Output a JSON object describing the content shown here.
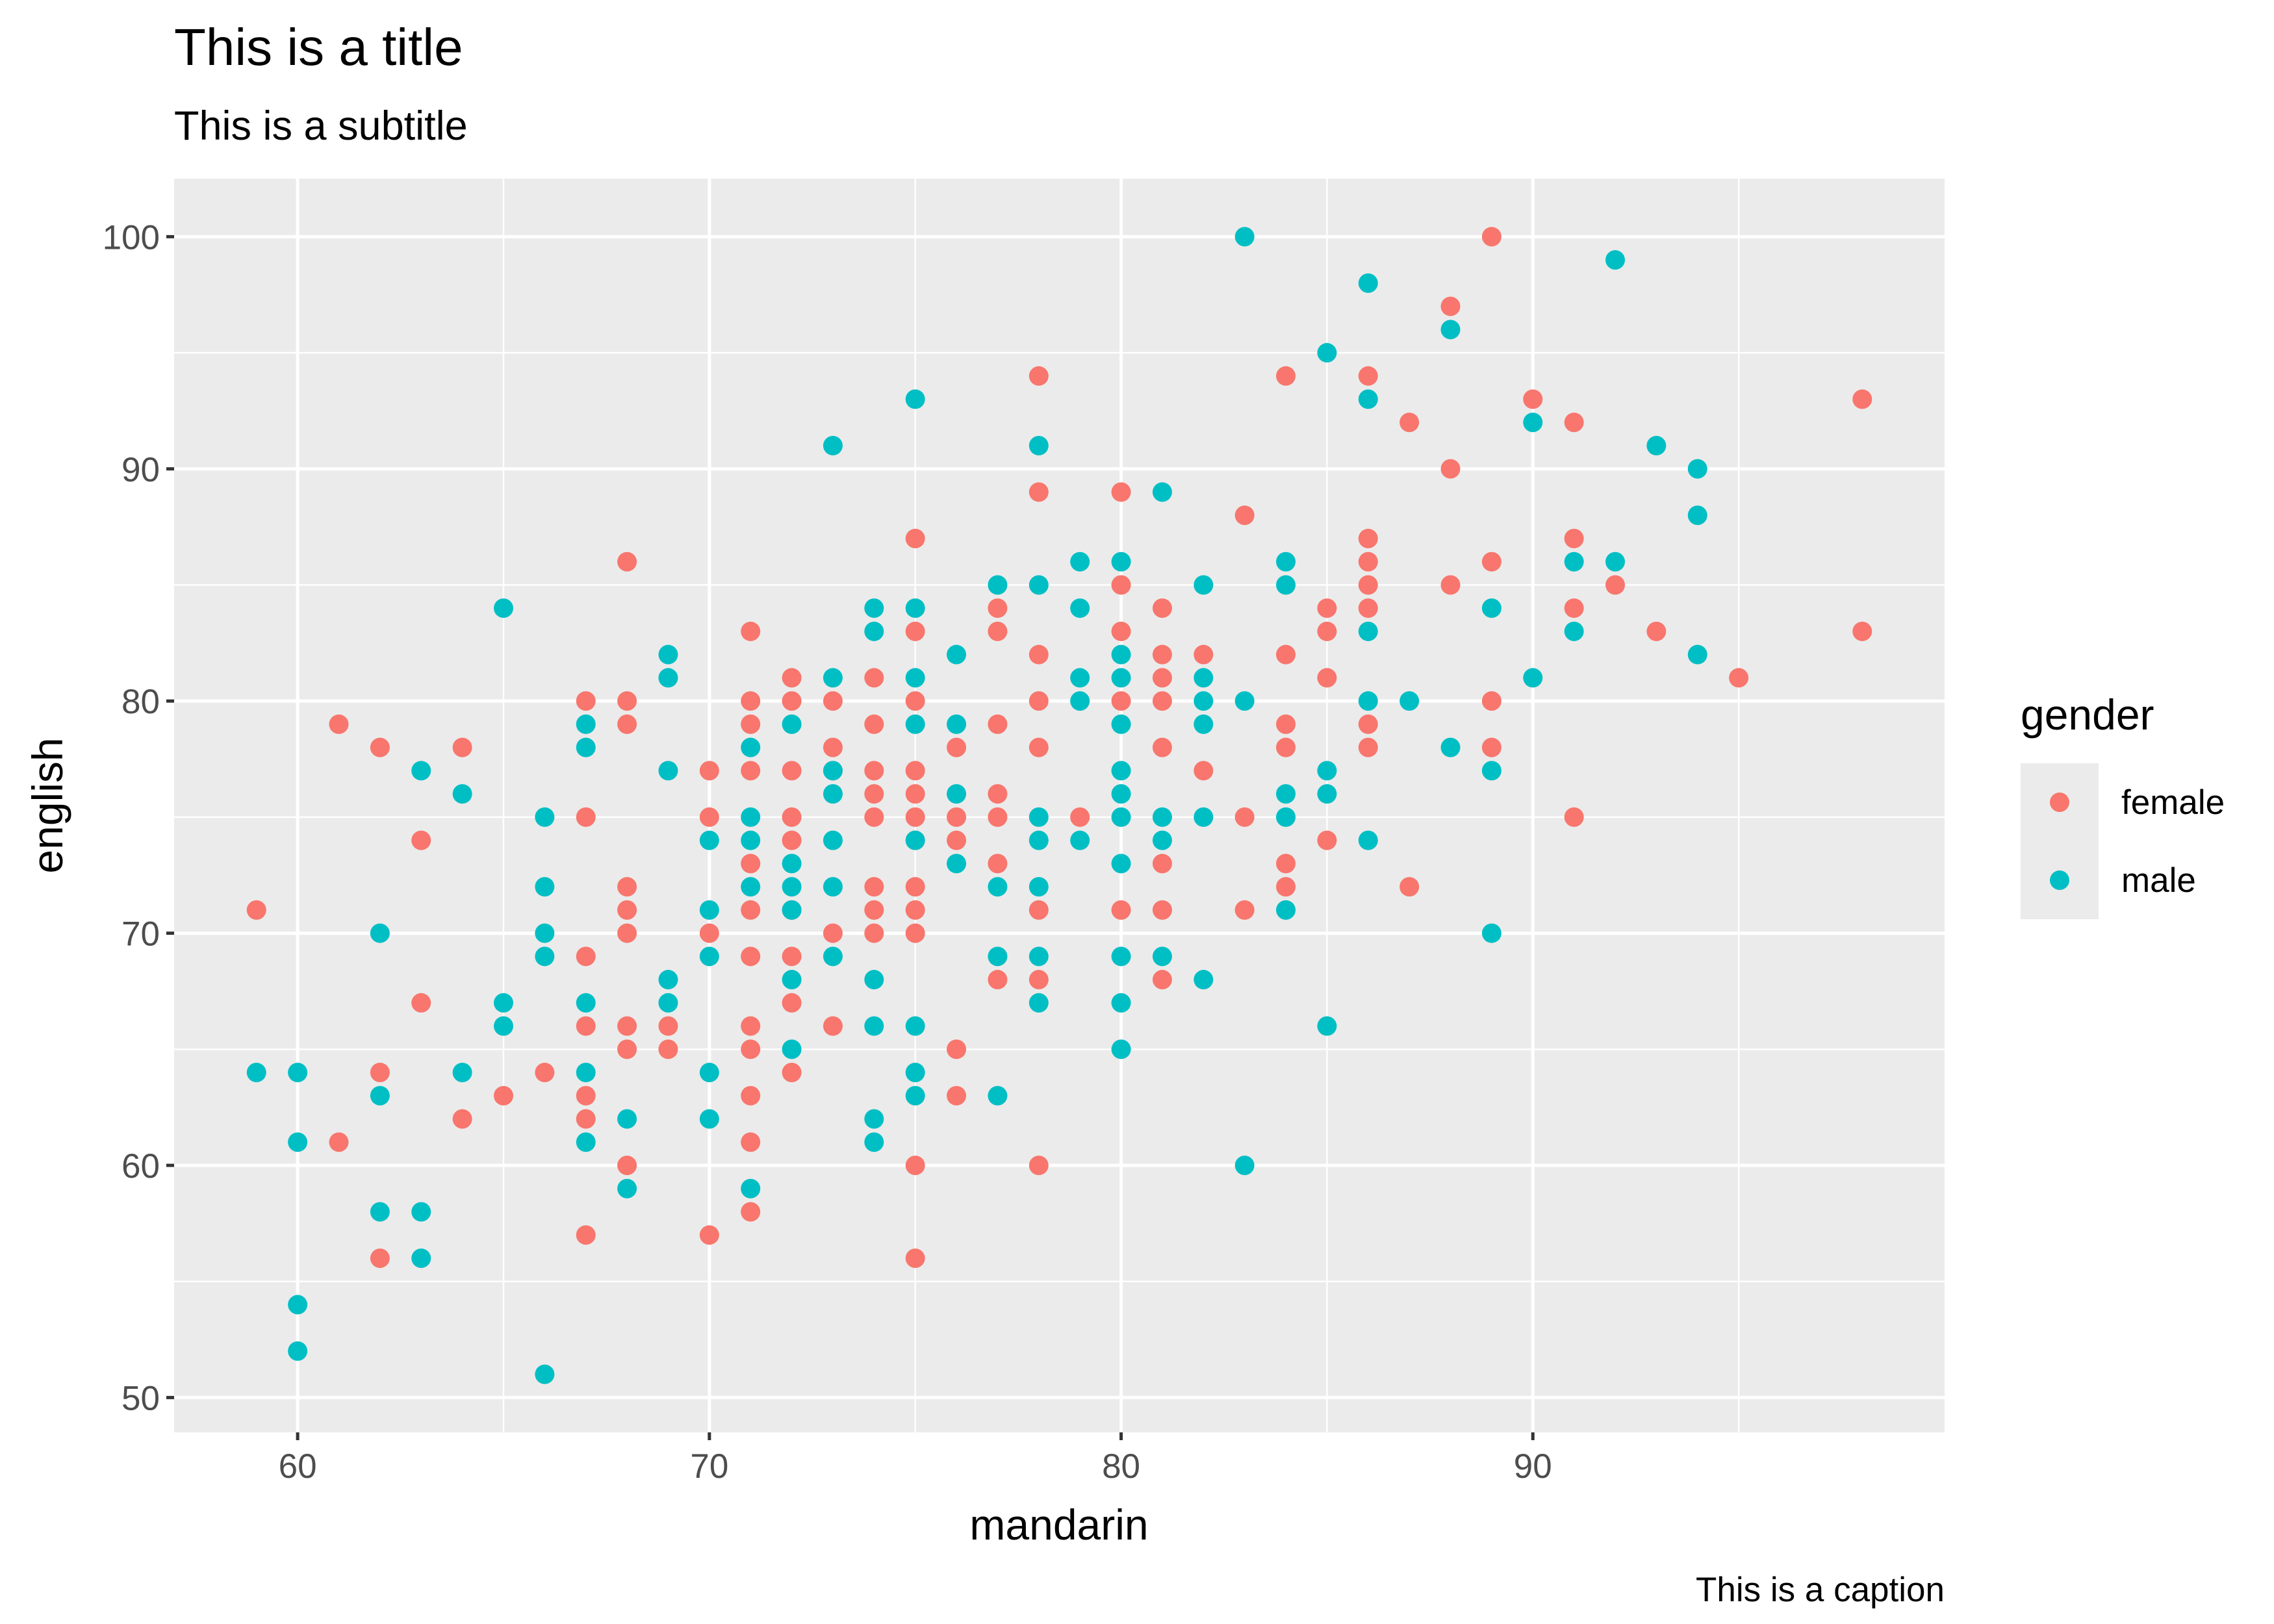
{
  "chart_data": {
    "type": "scatter",
    "title": "This is a title",
    "subtitle": "This is a subtitle",
    "caption": "This is a caption",
    "xlabel": "mandarin",
    "ylabel": "english",
    "xlim": [
      57,
      100
    ],
    "ylim": [
      48.5,
      102.5
    ],
    "x_ticks": [
      60,
      70,
      80,
      90
    ],
    "y_ticks": [
      50,
      60,
      70,
      80,
      90,
      100
    ],
    "x_tick_labels": [
      "60",
      "70",
      "80",
      "90"
    ],
    "y_tick_labels": [
      "50",
      "60",
      "70",
      "80",
      "90",
      "100"
    ],
    "grid": true,
    "legend": {
      "title": "gender",
      "position": "right",
      "entries": [
        {
          "label": "female",
          "color": "#F8766D"
        },
        {
          "label": "male",
          "color": "#00BFC4"
        }
      ]
    },
    "series": [
      {
        "name": "female",
        "color": "#F8766D",
        "points": [
          [
            59,
            71
          ],
          [
            61,
            79
          ],
          [
            61,
            61
          ],
          [
            62,
            78
          ],
          [
            62,
            64
          ],
          [
            62,
            56
          ],
          [
            63,
            74
          ],
          [
            63,
            67
          ],
          [
            64,
            78
          ],
          [
            64,
            62
          ],
          [
            65,
            63
          ],
          [
            66,
            64
          ],
          [
            67,
            80
          ],
          [
            67,
            75
          ],
          [
            67,
            69
          ],
          [
            67,
            66
          ],
          [
            67,
            63
          ],
          [
            67,
            62
          ],
          [
            67,
            57
          ],
          [
            68,
            86
          ],
          [
            68,
            80
          ],
          [
            68,
            79
          ],
          [
            68,
            72
          ],
          [
            68,
            71
          ],
          [
            68,
            70
          ],
          [
            68,
            66
          ],
          [
            68,
            65
          ],
          [
            68,
            60
          ],
          [
            69,
            66
          ],
          [
            69,
            65
          ],
          [
            70,
            77
          ],
          [
            70,
            75
          ],
          [
            70,
            70
          ],
          [
            70,
            57
          ],
          [
            71,
            83
          ],
          [
            71,
            80
          ],
          [
            71,
            79
          ],
          [
            71,
            77
          ],
          [
            71,
            73
          ],
          [
            71,
            71
          ],
          [
            71,
            69
          ],
          [
            71,
            66
          ],
          [
            71,
            65
          ],
          [
            71,
            63
          ],
          [
            71,
            61
          ],
          [
            71,
            58
          ],
          [
            72,
            81
          ],
          [
            72,
            80
          ],
          [
            72,
            77
          ],
          [
            72,
            75
          ],
          [
            72,
            74
          ],
          [
            72,
            71
          ],
          [
            72,
            69
          ],
          [
            72,
            67
          ],
          [
            72,
            64
          ],
          [
            73,
            80
          ],
          [
            73,
            78
          ],
          [
            73,
            77
          ],
          [
            73,
            70
          ],
          [
            73,
            66
          ],
          [
            74,
            81
          ],
          [
            74,
            79
          ],
          [
            74,
            77
          ],
          [
            74,
            76
          ],
          [
            74,
            75
          ],
          [
            74,
            72
          ],
          [
            74,
            71
          ],
          [
            74,
            70
          ],
          [
            75,
            87
          ],
          [
            75,
            83
          ],
          [
            75,
            80
          ],
          [
            75,
            77
          ],
          [
            75,
            76
          ],
          [
            75,
            75
          ],
          [
            75,
            74
          ],
          [
            75,
            72
          ],
          [
            75,
            71
          ],
          [
            75,
            70
          ],
          [
            75,
            60
          ],
          [
            75,
            56
          ],
          [
            76,
            78
          ],
          [
            76,
            75
          ],
          [
            76,
            74
          ],
          [
            76,
            65
          ],
          [
            76,
            63
          ],
          [
            77,
            84
          ],
          [
            77,
            83
          ],
          [
            77,
            79
          ],
          [
            77,
            76
          ],
          [
            77,
            75
          ],
          [
            77,
            73
          ],
          [
            77,
            68
          ],
          [
            78,
            94
          ],
          [
            78,
            89
          ],
          [
            78,
            82
          ],
          [
            78,
            80
          ],
          [
            78,
            78
          ],
          [
            78,
            71
          ],
          [
            78,
            68
          ],
          [
            78,
            60
          ],
          [
            79,
            75
          ],
          [
            80,
            89
          ],
          [
            80,
            85
          ],
          [
            80,
            83
          ],
          [
            80,
            80
          ],
          [
            80,
            71
          ],
          [
            81,
            84
          ],
          [
            81,
            82
          ],
          [
            81,
            81
          ],
          [
            81,
            80
          ],
          [
            81,
            78
          ],
          [
            81,
            73
          ],
          [
            81,
            71
          ],
          [
            81,
            68
          ],
          [
            82,
            82
          ],
          [
            82,
            77
          ],
          [
            83,
            88
          ],
          [
            83,
            75
          ],
          [
            83,
            71
          ],
          [
            84,
            94
          ],
          [
            84,
            82
          ],
          [
            84,
            79
          ],
          [
            84,
            78
          ],
          [
            84,
            73
          ],
          [
            84,
            72
          ],
          [
            85,
            84
          ],
          [
            85,
            83
          ],
          [
            85,
            81
          ],
          [
            85,
            74
          ],
          [
            86,
            94
          ],
          [
            86,
            87
          ],
          [
            86,
            86
          ],
          [
            86,
            85
          ],
          [
            86,
            84
          ],
          [
            86,
            79
          ],
          [
            86,
            78
          ],
          [
            87,
            92
          ],
          [
            87,
            72
          ],
          [
            88,
            97
          ],
          [
            88,
            90
          ],
          [
            88,
            85
          ],
          [
            89,
            100
          ],
          [
            89,
            86
          ],
          [
            89,
            80
          ],
          [
            89,
            78
          ],
          [
            90,
            93
          ],
          [
            91,
            92
          ],
          [
            91,
            87
          ],
          [
            91,
            84
          ],
          [
            91,
            75
          ],
          [
            92,
            85
          ],
          [
            93,
            83
          ],
          [
            95,
            81
          ],
          [
            98,
            93
          ],
          [
            98,
            83
          ]
        ]
      },
      {
        "name": "male",
        "color": "#00BFC4",
        "points": [
          [
            59,
            64
          ],
          [
            60,
            64
          ],
          [
            60,
            61
          ],
          [
            60,
            54
          ],
          [
            60,
            52
          ],
          [
            62,
            70
          ],
          [
            62,
            63
          ],
          [
            62,
            58
          ],
          [
            63,
            77
          ],
          [
            63,
            58
          ],
          [
            63,
            56
          ],
          [
            64,
            76
          ],
          [
            64,
            64
          ],
          [
            65,
            84
          ],
          [
            65,
            67
          ],
          [
            65,
            66
          ],
          [
            66,
            75
          ],
          [
            66,
            72
          ],
          [
            66,
            70
          ],
          [
            66,
            69
          ],
          [
            66,
            51
          ],
          [
            67,
            79
          ],
          [
            67,
            78
          ],
          [
            67,
            67
          ],
          [
            67,
            64
          ],
          [
            67,
            61
          ],
          [
            68,
            62
          ],
          [
            68,
            59
          ],
          [
            69,
            82
          ],
          [
            69,
            81
          ],
          [
            69,
            77
          ],
          [
            69,
            68
          ],
          [
            69,
            67
          ],
          [
            70,
            74
          ],
          [
            70,
            71
          ],
          [
            70,
            69
          ],
          [
            70,
            64
          ],
          [
            70,
            62
          ],
          [
            71,
            78
          ],
          [
            71,
            75
          ],
          [
            71,
            74
          ],
          [
            71,
            72
          ],
          [
            71,
            59
          ],
          [
            72,
            79
          ],
          [
            72,
            73
          ],
          [
            72,
            72
          ],
          [
            72,
            71
          ],
          [
            72,
            68
          ],
          [
            72,
            65
          ],
          [
            73,
            91
          ],
          [
            73,
            81
          ],
          [
            73,
            77
          ],
          [
            73,
            76
          ],
          [
            73,
            74
          ],
          [
            73,
            72
          ],
          [
            73,
            69
          ],
          [
            74,
            84
          ],
          [
            74,
            83
          ],
          [
            74,
            68
          ],
          [
            74,
            66
          ],
          [
            74,
            62
          ],
          [
            74,
            61
          ],
          [
            75,
            93
          ],
          [
            75,
            84
          ],
          [
            75,
            81
          ],
          [
            75,
            79
          ],
          [
            75,
            74
          ],
          [
            75,
            66
          ],
          [
            75,
            64
          ],
          [
            75,
            63
          ],
          [
            76,
            82
          ],
          [
            76,
            79
          ],
          [
            76,
            76
          ],
          [
            76,
            73
          ],
          [
            77,
            85
          ],
          [
            77,
            72
          ],
          [
            77,
            69
          ],
          [
            77,
            63
          ],
          [
            78,
            91
          ],
          [
            78,
            85
          ],
          [
            78,
            75
          ],
          [
            78,
            74
          ],
          [
            78,
            72
          ],
          [
            78,
            69
          ],
          [
            78,
            67
          ],
          [
            79,
            86
          ],
          [
            79,
            84
          ],
          [
            79,
            81
          ],
          [
            79,
            80
          ],
          [
            79,
            74
          ],
          [
            80,
            86
          ],
          [
            80,
            82
          ],
          [
            80,
            81
          ],
          [
            80,
            79
          ],
          [
            80,
            77
          ],
          [
            80,
            76
          ],
          [
            80,
            75
          ],
          [
            80,
            73
          ],
          [
            80,
            69
          ],
          [
            80,
            67
          ],
          [
            80,
            65
          ],
          [
            81,
            89
          ],
          [
            81,
            75
          ],
          [
            81,
            74
          ],
          [
            81,
            69
          ],
          [
            82,
            85
          ],
          [
            82,
            81
          ],
          [
            82,
            80
          ],
          [
            82,
            79
          ],
          [
            82,
            75
          ],
          [
            82,
            68
          ],
          [
            83,
            100
          ],
          [
            83,
            80
          ],
          [
            83,
            60
          ],
          [
            84,
            86
          ],
          [
            84,
            85
          ],
          [
            84,
            76
          ],
          [
            84,
            75
          ],
          [
            84,
            71
          ],
          [
            85,
            95
          ],
          [
            85,
            77
          ],
          [
            85,
            76
          ],
          [
            85,
            66
          ],
          [
            86,
            98
          ],
          [
            86,
            93
          ],
          [
            86,
            83
          ],
          [
            86,
            80
          ],
          [
            86,
            74
          ],
          [
            87,
            80
          ],
          [
            88,
            96
          ],
          [
            88,
            78
          ],
          [
            89,
            84
          ],
          [
            89,
            77
          ],
          [
            89,
            70
          ],
          [
            90,
            92
          ],
          [
            90,
            81
          ],
          [
            91,
            86
          ],
          [
            91,
            83
          ],
          [
            92,
            99
          ],
          [
            92,
            86
          ],
          [
            93,
            91
          ],
          [
            94,
            90
          ],
          [
            94,
            88
          ],
          [
            94,
            82
          ]
        ]
      }
    ]
  }
}
